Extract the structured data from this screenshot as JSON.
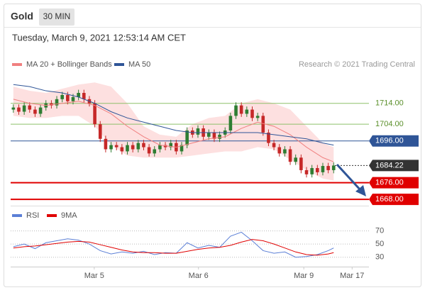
{
  "header": {
    "title": "Gold",
    "timeframe": "30 MIN",
    "timestamp": "Tuesday, March 9, 2021 12:53:14 AM CET",
    "credit": "Research © 2021 Trading Central"
  },
  "chart_data": [
    {
      "type": "candlestick",
      "xlim": [
        -0.5,
        65.5
      ],
      "ylim": [
        1665,
        1737
      ],
      "xticks": [
        {
          "value": 14.9,
          "label": "Mar 5"
        },
        {
          "value": 34.1,
          "label": "Mar 6"
        },
        {
          "value": 53.5,
          "label": "Mar 9"
        },
        {
          "value": 62.4,
          "label": "Mar 17"
        }
      ],
      "up_color": "#2e7d32",
      "down_color": "#c62828",
      "open": [
        1711,
        1712,
        1710,
        1713,
        1711,
        1709,
        1712,
        1714,
        1713,
        1716,
        1718,
        1715,
        1717,
        1719,
        1716,
        1714,
        1704,
        1697,
        1692,
        1694,
        1693,
        1691,
        1694,
        1692,
        1695,
        1693,
        1690,
        1692,
        1694,
        1693,
        1695,
        1691,
        1694,
        1701,
        1699,
        1702,
        1698,
        1700,
        1697,
        1699,
        1701,
        1708,
        1713,
        1709,
        1711,
        1707,
        1708,
        1700,
        1695,
        1693,
        1690,
        1692,
        1686,
        1688,
        1682,
        1680,
        1683,
        1681,
        1684,
        1682
      ],
      "high": [
        1713.5,
        1713.5,
        1714.5,
        1714.5,
        1712.5,
        1713.5,
        1715.5,
        1715.5,
        1717.5,
        1719.5,
        1719.5,
        1718.5,
        1720.5,
        1720.5,
        1717.5,
        1715.5,
        1705.5,
        1698.5,
        1695.5,
        1695.5,
        1694.5,
        1695.5,
        1695.5,
        1696.5,
        1696.5,
        1694.5,
        1693.5,
        1695.5,
        1695.5,
        1696.5,
        1696.5,
        1695.5,
        1702.5,
        1702.5,
        1703.5,
        1703.5,
        1701.5,
        1701.5,
        1700.5,
        1702.5,
        1709.5,
        1714.5,
        1714.5,
        1712.5,
        1712.5,
        1709.5,
        1709.5,
        1701.5,
        1696.5,
        1694.5,
        1693.5,
        1693.5,
        1689.5,
        1689.5,
        1683.5,
        1684.5,
        1684.5,
        1685.5,
        1685.5,
        1685.72
      ],
      "low": [
        1709.5,
        1708.5,
        1708.5,
        1709.5,
        1707.5,
        1707.5,
        1710.5,
        1711.5,
        1711.5,
        1714.5,
        1713.5,
        1713.5,
        1715.5,
        1714.5,
        1712.5,
        1702.5,
        1695.5,
        1690.5,
        1690.5,
        1691.5,
        1689.5,
        1689.5,
        1690.5,
        1690.5,
        1691.5,
        1688.5,
        1688.5,
        1690.5,
        1691.5,
        1691.5,
        1689.5,
        1689.5,
        1692.5,
        1697.5,
        1697.5,
        1696.5,
        1696.5,
        1695.5,
        1695.5,
        1697.5,
        1699.5,
        1706.5,
        1707.5,
        1707.5,
        1705.5,
        1705.5,
        1698.5,
        1693.5,
        1691.5,
        1688.5,
        1688.5,
        1684.5,
        1684.5,
        1680.5,
        1678.5,
        1678.5,
        1679.5,
        1679.5,
        1680.5,
        1680.5
      ],
      "close": [
        1712,
        1710,
        1713,
        1711,
        1709,
        1712,
        1714,
        1713,
        1716,
        1718,
        1715,
        1717,
        1719,
        1716,
        1714,
        1704,
        1697,
        1692,
        1694,
        1693,
        1691,
        1694,
        1692,
        1695,
        1693,
        1690,
        1692,
        1694,
        1693,
        1695,
        1691,
        1694,
        1701,
        1699,
        1702,
        1698,
        1700,
        1697,
        1699,
        1701,
        1708,
        1713,
        1709,
        1711,
        1707,
        1708,
        1700,
        1695,
        1693,
        1690,
        1692,
        1686,
        1688,
        1682,
        1680,
        1683,
        1681,
        1684,
        1682,
        1684.22
      ],
      "overlays": [
        {
          "name": "MA 20 + Bollinger Bands",
          "color": "#f08080",
          "band_color": "#fde0e0",
          "x": [
            0,
            3,
            6,
            9,
            12,
            15,
            18,
            21,
            24,
            27,
            30,
            33,
            36,
            39,
            42,
            45,
            48,
            51,
            54,
            57,
            59
          ],
          "values": [
            1716,
            1714,
            1713,
            1714,
            1715,
            1713,
            1709,
            1703,
            1698,
            1694,
            1693,
            1695,
            1697,
            1698,
            1702,
            1705,
            1703,
            1699,
            1693,
            1688,
            1686
          ],
          "upper": [
            1722,
            1720,
            1719,
            1721,
            1723,
            1724,
            1722,
            1714,
            1703,
            1699,
            1698,
            1704,
            1707,
            1708,
            1714,
            1716,
            1714,
            1711,
            1703,
            1695,
            1693
          ],
          "lower": [
            1708,
            1707,
            1707,
            1708,
            1708,
            1703,
            1694,
            1689,
            1688,
            1688,
            1688,
            1689,
            1690,
            1691,
            1691,
            1693,
            1692,
            1687,
            1682,
            1678,
            1677
          ]
        },
        {
          "name": "MA 50",
          "color": "#2f5597",
          "x": [
            0,
            3,
            6,
            9,
            12,
            15,
            18,
            21,
            24,
            27,
            30,
            33,
            36,
            39,
            42,
            45,
            48,
            51,
            54,
            57,
            59
          ],
          "values": [
            1723,
            1722,
            1720,
            1719,
            1717,
            1714,
            1710,
            1707,
            1705,
            1703,
            1701,
            1700,
            1700,
            1700,
            1700,
            1700,
            1699,
            1698,
            1697,
            1695,
            1694
          ]
        }
      ],
      "levels": [
        {
          "value": 1714,
          "label": "1714.00",
          "color": "#8dc06a",
          "boxed": false,
          "dashed": false
        },
        {
          "value": 1704,
          "label": "1704.00",
          "color": "#8dc06a",
          "boxed": false,
          "dashed": false
        },
        {
          "value": 1696,
          "label": "1696.00",
          "color": "#2f5597",
          "boxed": true,
          "dashed": false
        },
        {
          "value": 1684.22,
          "label": "1684.22",
          "color": "#333333",
          "boxed": true,
          "dashed": true
        },
        {
          "value": 1676,
          "label": "1676.00",
          "color": "#e00000",
          "boxed": true,
          "dashed": false
        },
        {
          "value": 1668,
          "label": "1668.00",
          "color": "#e00000",
          "boxed": true,
          "dashed": false
        }
      ]
    },
    {
      "type": "line",
      "xlim": [
        -0.5,
        65.5
      ],
      "ylim": [
        20,
        90
      ],
      "yticks": [
        30,
        50,
        70
      ],
      "series": [
        {
          "name": "RSI",
          "color": "#5b7fd6",
          "x": [
            0,
            2,
            4,
            6,
            8,
            10,
            12,
            14,
            16,
            18,
            20,
            22,
            24,
            26,
            28,
            30,
            32,
            34,
            36,
            38,
            40,
            42,
            44,
            46,
            48,
            50,
            52,
            54,
            56,
            58,
            59
          ],
          "values": [
            46,
            50,
            43,
            52,
            55,
            58,
            56,
            50,
            40,
            35,
            38,
            36,
            39,
            34,
            37,
            36,
            52,
            44,
            48,
            45,
            62,
            68,
            55,
            40,
            36,
            38,
            30,
            31,
            34,
            40,
            44
          ]
        },
        {
          "name": "9MA",
          "color": "#e00000",
          "x": [
            0,
            2,
            4,
            6,
            8,
            10,
            12,
            14,
            16,
            18,
            20,
            22,
            24,
            26,
            28,
            30,
            32,
            34,
            36,
            38,
            40,
            42,
            44,
            46,
            48,
            50,
            52,
            54,
            56,
            58,
            59
          ],
          "values": [
            44,
            46,
            47,
            49,
            51,
            53,
            54,
            53,
            49,
            45,
            41,
            38,
            37,
            37,
            36,
            36,
            39,
            42,
            44,
            45,
            48,
            53,
            57,
            55,
            50,
            44,
            38,
            34,
            33,
            35,
            37
          ]
        }
      ]
    }
  ]
}
